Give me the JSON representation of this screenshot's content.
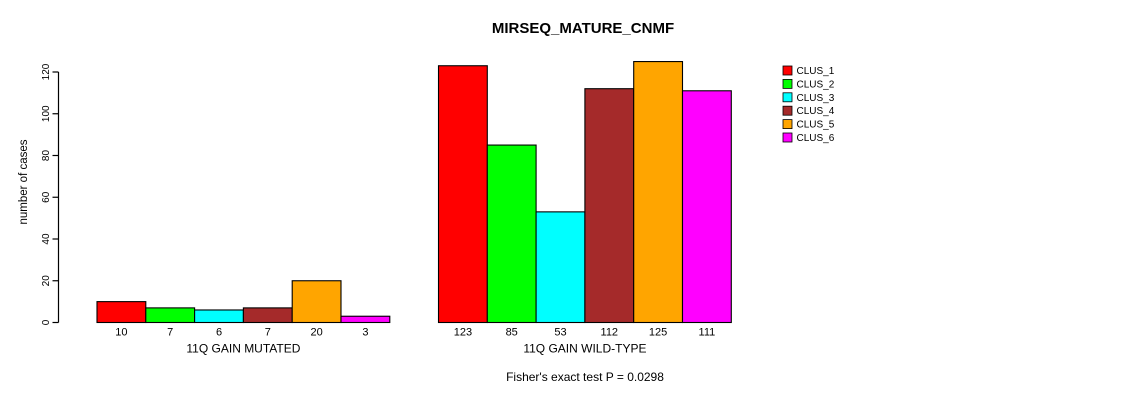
{
  "title": "MIRSEQ_MATURE_CNMF",
  "caption": "Fisher's exact test P = 0.0298",
  "palette": {
    "background": "#ffffff",
    "axis": "#000000",
    "bar_border": "#000000"
  },
  "chart_data": {
    "type": "bar",
    "title": "MIRSEQ_MATURE_CNMF",
    "xlabel": "",
    "ylabel": "number of cases",
    "ylim": [
      0,
      120
    ],
    "yticks": [
      0,
      20,
      40,
      60,
      80,
      100,
      120
    ],
    "grid": false,
    "legend_position": "right",
    "bar_value_labels": true,
    "annotation": "Fisher's exact test P = 0.0298",
    "series_names": [
      "CLUS_1",
      "CLUS_2",
      "CLUS_3",
      "CLUS_4",
      "CLUS_5",
      "CLUS_6"
    ],
    "series_colors": [
      "#FF0000",
      "#00FF00",
      "#00FFFF",
      "#A52A2A",
      "#FFA500",
      "#FF00FF"
    ],
    "groups": [
      {
        "label": "11Q GAIN MUTATED",
        "values": [
          10,
          7,
          6,
          7,
          20,
          3
        ]
      },
      {
        "label": "11Q GAIN WILD-TYPE",
        "values": [
          123,
          85,
          53,
          112,
          125,
          111
        ]
      }
    ],
    "legend": [
      {
        "label": "CLUS_1",
        "color": "#FF0000"
      },
      {
        "label": "CLUS_2",
        "color": "#00FF00"
      },
      {
        "label": "CLUS_3",
        "color": "#00FFFF"
      },
      {
        "label": "CLUS_4",
        "color": "#A52A2A"
      },
      {
        "label": "CLUS_5",
        "color": "#FFA500"
      },
      {
        "label": "CLUS_6",
        "color": "#FF00FF"
      }
    ]
  }
}
